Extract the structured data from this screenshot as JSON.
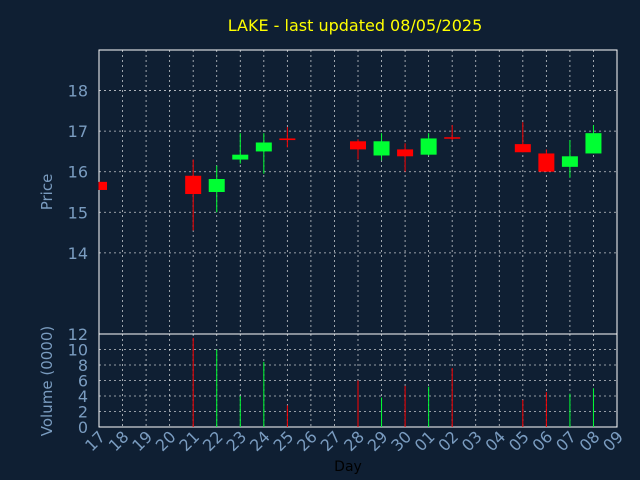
{
  "chart_data": {
    "type": "candlestick",
    "title": "LAKE - last updated 08/05/2025",
    "xlabel": "Day",
    "price_panel": {
      "ylabel": "Price",
      "ylim": [
        12,
        19
      ],
      "yticks": [
        "14",
        "15",
        "16",
        "17",
        "18"
      ],
      "bottom_tick": "12"
    },
    "volume_panel": {
      "ylabel": "Volume (0000)",
      "ylim": [
        0,
        12
      ],
      "yticks": [
        "0",
        "2",
        "4",
        "6",
        "8",
        "10"
      ]
    },
    "x_ticks": [
      "17",
      "18",
      "19",
      "20",
      "21",
      "22",
      "23",
      "24",
      "25",
      "26",
      "27",
      "28",
      "29",
      "30",
      "01",
      "02",
      "03",
      "04",
      "05",
      "06",
      "07",
      "08",
      "09"
    ],
    "candles": [
      {
        "day": "17",
        "open": 15.75,
        "high": 15.75,
        "low": 15.55,
        "close": 15.55,
        "volume": 0
      },
      {
        "day": "21",
        "open": 15.9,
        "high": 16.3,
        "low": 14.55,
        "close": 15.45,
        "volume": 11.5
      },
      {
        "day": "22",
        "open": 15.5,
        "high": 16.15,
        "low": 15.0,
        "close": 15.82,
        "volume": 10.0
      },
      {
        "day": "23",
        "open": 16.3,
        "high": 16.95,
        "low": 16.2,
        "close": 16.42,
        "volume": 4.0
      },
      {
        "day": "24",
        "open": 16.5,
        "high": 16.95,
        "low": 15.95,
        "close": 16.72,
        "volume": 8.4
      },
      {
        "day": "25",
        "open": 16.82,
        "high": 17.1,
        "low": 16.6,
        "close": 16.78,
        "volume": 2.8
      },
      {
        "day": "28",
        "open": 16.75,
        "high": 16.8,
        "low": 16.3,
        "close": 16.55,
        "volume": 6.0
      },
      {
        "day": "29",
        "open": 16.4,
        "high": 16.95,
        "low": 16.28,
        "close": 16.75,
        "volume": 3.8
      },
      {
        "day": "30",
        "open": 16.55,
        "high": 16.7,
        "low": 16.0,
        "close": 16.38,
        "volume": 5.3
      },
      {
        "day": "01",
        "open": 16.42,
        "high": 16.95,
        "low": 16.4,
        "close": 16.82,
        "volume": 5.2
      },
      {
        "day": "02",
        "open": 16.85,
        "high": 17.15,
        "low": 16.78,
        "close": 16.82,
        "volume": 7.6
      },
      {
        "day": "05",
        "open": 16.68,
        "high": 17.22,
        "low": 16.48,
        "close": 16.48,
        "volume": 3.5
      },
      {
        "day": "06",
        "open": 16.45,
        "high": 16.55,
        "low": 16.0,
        "close": 16.0,
        "volume": 4.5
      },
      {
        "day": "07",
        "open": 16.12,
        "high": 16.78,
        "low": 15.85,
        "close": 16.38,
        "volume": 4.3
      },
      {
        "day": "08",
        "open": 16.45,
        "high": 17.15,
        "low": 16.45,
        "close": 16.95,
        "volume": 5.0
      }
    ],
    "colors": {
      "background": "#0f1f33",
      "frame": "#ffffff",
      "grid": "#ffffff",
      "up": "#00ff33",
      "down": "#ff0000",
      "title": "#ffff00",
      "axis_label": "#7a9cc0",
      "x_label": "#000000"
    }
  }
}
